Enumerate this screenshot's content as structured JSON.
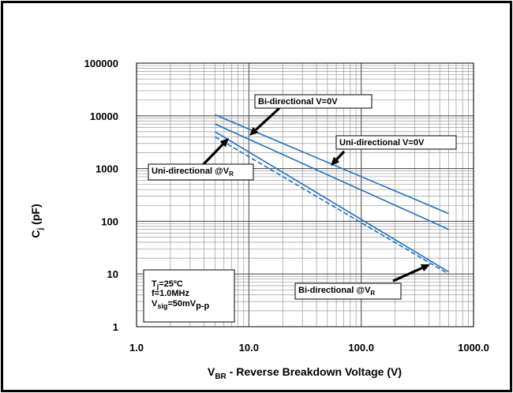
{
  "chart_data": {
    "type": "line",
    "x_scale": "log",
    "y_scale": "log",
    "xlim": [
      1,
      1000
    ],
    "ylim": [
      1,
      100000
    ],
    "x_ticks": [
      "1.0",
      "10.0",
      "100.0",
      "1000.0"
    ],
    "y_ticks": [
      "1",
      "10",
      "100",
      "1000",
      "10000",
      "100000"
    ],
    "xlabel": {
      "main": "V",
      "sub": "BR",
      "rest": " - Reverse Breakdown Voltage (V)"
    },
    "ylabel": {
      "main": "C",
      "sub": "j",
      "rest": " (pF)"
    },
    "grid": true,
    "colors": {
      "series": "#1f6fc5",
      "grid": "#9a9a9a",
      "frame": "#000000"
    },
    "series": [
      {
        "name": "Bi-directional V=0V",
        "style": "solid",
        "x": [
          5,
          600
        ],
        "y": [
          10500,
          140
        ]
      },
      {
        "name": "Uni-directional V=0V",
        "style": "solid",
        "x": [
          5,
          600
        ],
        "y": [
          7000,
          70
        ]
      },
      {
        "name": "Uni-directional @VR",
        "style": "solid",
        "x": [
          5,
          600
        ],
        "y": [
          5000,
          11
        ]
      },
      {
        "name": "Bi-directional @VR",
        "style": "dashed",
        "x": [
          5,
          600
        ],
        "y": [
          4000,
          10
        ]
      }
    ],
    "annotations": [
      {
        "id": "bi-v0",
        "text": "Bi-directional V=0V",
        "sub": ""
      },
      {
        "id": "uni-v0",
        "text": "Uni-directional V=0V",
        "sub": ""
      },
      {
        "id": "uni-vr",
        "text": "Uni-directional @V",
        "sub": "R"
      },
      {
        "id": "bi-vr",
        "text": "Bi-directional @V",
        "sub": "R"
      }
    ],
    "conditions": [
      {
        "main": "T",
        "sub": "j",
        "rest": "=25ºC"
      },
      {
        "main": "f=1.0MHz",
        "sub": "",
        "rest": ""
      },
      {
        "main": "V",
        "sub": "sig",
        "rest": "=50mV",
        "sub2": "p-p"
      }
    ]
  }
}
